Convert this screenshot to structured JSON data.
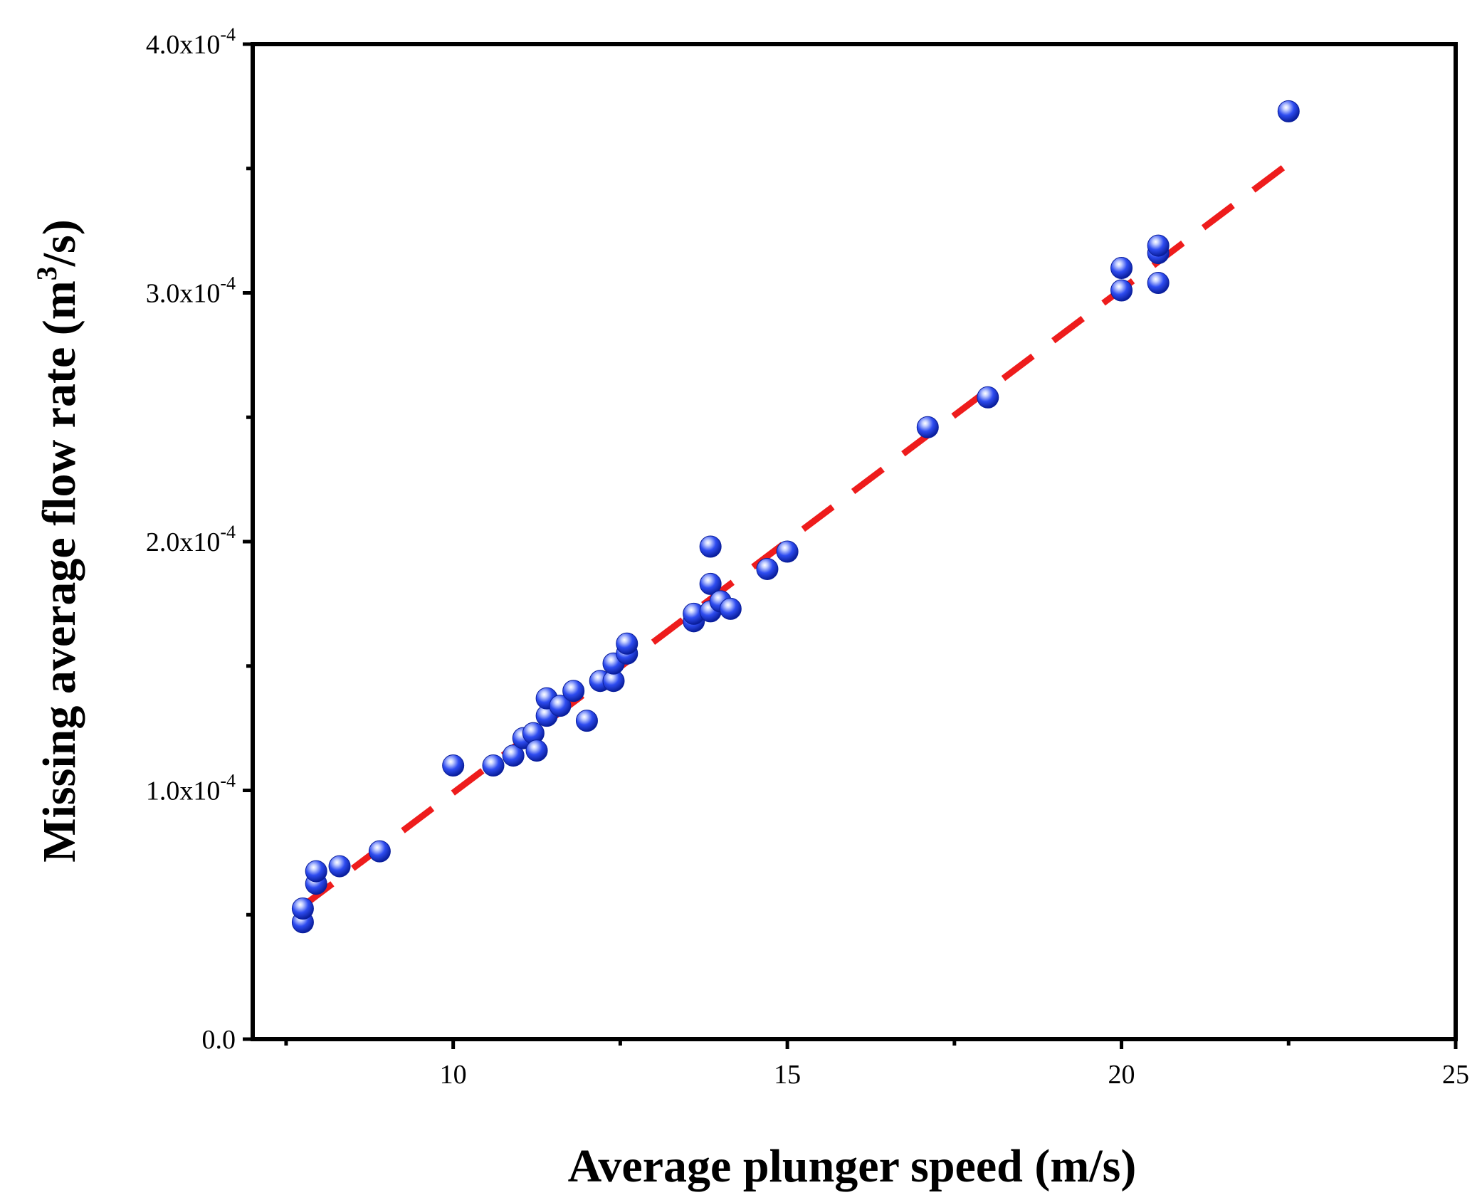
{
  "chart_data": {
    "type": "scatter",
    "xlabel": "Average plunger speed (m/s)",
    "ylabel_main": "Missing average flow rate (m",
    "ylabel_sup": "3",
    "ylabel_end": "/s)",
    "xlim": [
      7,
      25
    ],
    "ylim": [
      0,
      0.0004
    ],
    "x_ticks": [
      10,
      15,
      20,
      25
    ],
    "x_minor_ticks": [
      7.5,
      12.5,
      17.5,
      22.5
    ],
    "x_tick_labels": [
      "10",
      "15",
      "20",
      "25"
    ],
    "y_ticks": [
      0,
      0.0001,
      0.0002,
      0.0003,
      0.0004
    ],
    "y_minor_ticks": [
      5e-05,
      0.00015,
      0.00025,
      0.00035
    ],
    "y_tick_labels": [
      {
        "base": "0.0",
        "exp": ""
      },
      {
        "base": "1.0x10",
        "exp": "-4"
      },
      {
        "base": "2.0x10",
        "exp": "-4"
      },
      {
        "base": "3.0x10",
        "exp": "-4"
      },
      {
        "base": "4.0x10",
        "exp": "-4"
      }
    ],
    "grid": false,
    "marker_color": "#1f3fe0",
    "fit_color": "#ee1c1c",
    "points": [
      {
        "x": 7.75,
        "y": 4.7e-05
      },
      {
        "x": 7.75,
        "y": 5.25e-05
      },
      {
        "x": 7.95,
        "y": 6.25e-05
      },
      {
        "x": 7.95,
        "y": 6.75e-05
      },
      {
        "x": 8.3,
        "y": 6.95e-05
      },
      {
        "x": 8.9,
        "y": 7.55e-05
      },
      {
        "x": 10.0,
        "y": 0.00011
      },
      {
        "x": 10.6,
        "y": 0.00011
      },
      {
        "x": 10.9,
        "y": 0.000114
      },
      {
        "x": 11.05,
        "y": 0.000121
      },
      {
        "x": 11.2,
        "y": 0.000123
      },
      {
        "x": 11.25,
        "y": 0.000116
      },
      {
        "x": 11.4,
        "y": 0.00013
      },
      {
        "x": 11.4,
        "y": 0.000137
      },
      {
        "x": 11.6,
        "y": 0.000134
      },
      {
        "x": 11.8,
        "y": 0.00014
      },
      {
        "x": 12.0,
        "y": 0.000128
      },
      {
        "x": 12.2,
        "y": 0.000144
      },
      {
        "x": 12.4,
        "y": 0.000144
      },
      {
        "x": 12.4,
        "y": 0.000151
      },
      {
        "x": 12.6,
        "y": 0.000155
      },
      {
        "x": 12.6,
        "y": 0.000159
      },
      {
        "x": 13.6,
        "y": 0.000168
      },
      {
        "x": 13.6,
        "y": 0.000171
      },
      {
        "x": 13.85,
        "y": 0.000172
      },
      {
        "x": 13.85,
        "y": 0.000183
      },
      {
        "x": 13.85,
        "y": 0.000198
      },
      {
        "x": 14.0,
        "y": 0.000176
      },
      {
        "x": 14.15,
        "y": 0.000173
      },
      {
        "x": 14.7,
        "y": 0.000189
      },
      {
        "x": 15.0,
        "y": 0.000196
      },
      {
        "x": 17.1,
        "y": 0.000246
      },
      {
        "x": 18.0,
        "y": 0.000258
      },
      {
        "x": 20.0,
        "y": 0.000301
      },
      {
        "x": 20.0,
        "y": 0.00031
      },
      {
        "x": 20.55,
        "y": 0.000304
      },
      {
        "x": 20.55,
        "y": 0.000316
      },
      {
        "x": 20.55,
        "y": 0.000319
      },
      {
        "x": 22.5,
        "y": 0.000373
      }
    ],
    "fit_line": {
      "x": [
        7.75,
        22.5
      ],
      "y": [
        5.35e-05,
        0.000352
      ]
    }
  }
}
